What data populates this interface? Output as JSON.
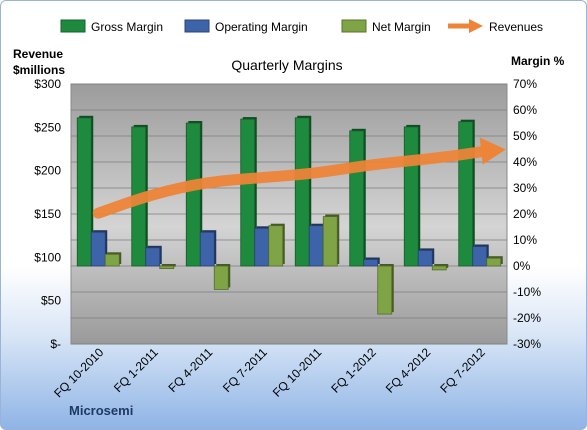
{
  "chart_data": {
    "type": "bar",
    "title": "Quarterly Margins",
    "company": "Microsemi",
    "left_axis_label": [
      "Revenue",
      "$millions"
    ],
    "right_axis_label": "Margin %",
    "left_ticks": [
      "$300",
      "$250",
      "$200",
      "$150",
      "$100",
      "$50",
      "$-"
    ],
    "right_ticks": [
      "70%",
      "60%",
      "50%",
      "40%",
      "30%",
      "20%",
      "10%",
      "0%",
      "-10%",
      "-20%",
      "-30%"
    ],
    "left_ylim": [
      0,
      300
    ],
    "right_ylim": [
      -30,
      70
    ],
    "categories": [
      "FQ 10-2010",
      "FQ 1-2011",
      "FQ 4-2011",
      "FQ 7-2011",
      "FQ 10-2011",
      "FQ 1-2012",
      "FQ 4-2012",
      "FQ 7-2012"
    ],
    "series": [
      {
        "name": "Gross Margin",
        "axis": "right",
        "color": "#1e8a3e",
        "values": [
          57,
          53.5,
          55,
          56.5,
          57,
          52,
          53.5,
          55.5
        ]
      },
      {
        "name": "Operating Margin",
        "axis": "right",
        "color": "#3d63a8",
        "values": [
          13,
          7,
          13,
          14.5,
          15.5,
          2.5,
          6,
          7.5
        ]
      },
      {
        "name": "Net Margin",
        "axis": "right",
        "color": "#7fa445",
        "values": [
          4.5,
          -1,
          -9,
          15.5,
          19,
          -18.5,
          -1.5,
          3
        ]
      },
      {
        "name": "Revenues",
        "axis": "left",
        "color": "#ed8437",
        "type": "line",
        "values": [
          151,
          173,
          187,
          192,
          197,
          207,
          213,
          221
        ]
      }
    ],
    "grid": true,
    "legend": "top"
  }
}
